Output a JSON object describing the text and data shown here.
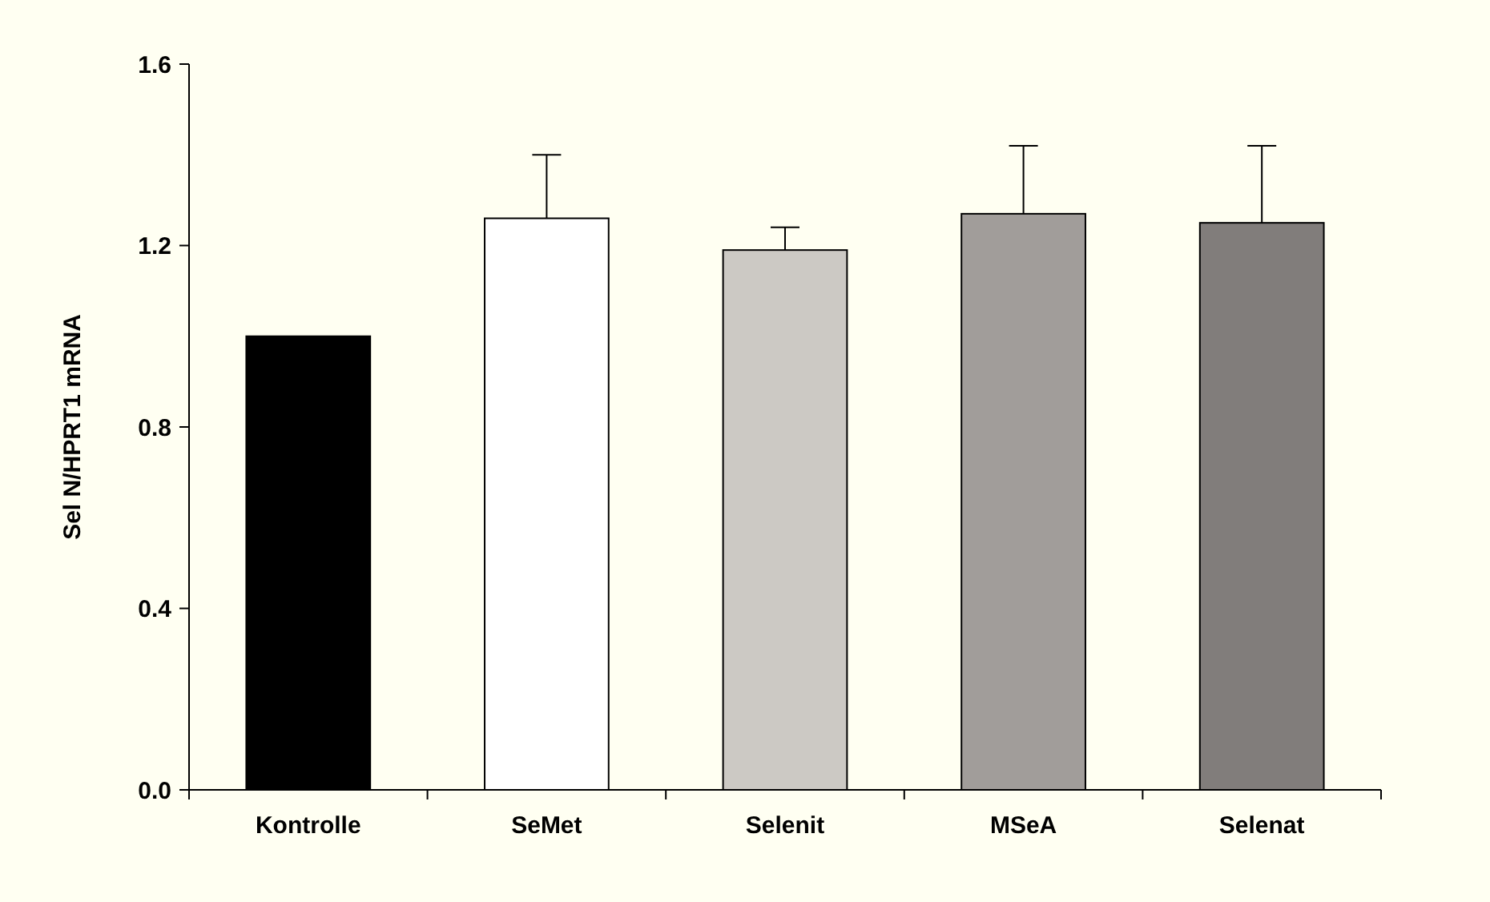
{
  "chart_data": {
    "type": "bar",
    "ylabel": "Sel N/HPRT1 mRNA",
    "categories": [
      "Kontrolle",
      "SeMet",
      "Selenit",
      "MSeA",
      "Selenat"
    ],
    "values": [
      1.0,
      1.26,
      1.19,
      1.27,
      1.25
    ],
    "colors": [
      "#000000",
      "#ffffff",
      "#ccc9c4",
      "#a19d9a",
      "#817d7b"
    ],
    "errors": [
      null,
      [
        1.26,
        1.4
      ],
      [
        1.19,
        1.24
      ],
      [
        1.27,
        1.42
      ],
      [
        1.25,
        1.42
      ]
    ],
    "ylim": [
      0,
      1.6
    ],
    "yticks": [
      {
        "value": 0,
        "label": "0.0"
      },
      {
        "value": 0.4,
        "label": "0.4"
      },
      {
        "value": 0.8,
        "label": "0.8"
      },
      {
        "value": 1.2,
        "label": "1.2"
      },
      {
        "value": 1.6,
        "label": "1.6"
      }
    ],
    "grid": false
  }
}
